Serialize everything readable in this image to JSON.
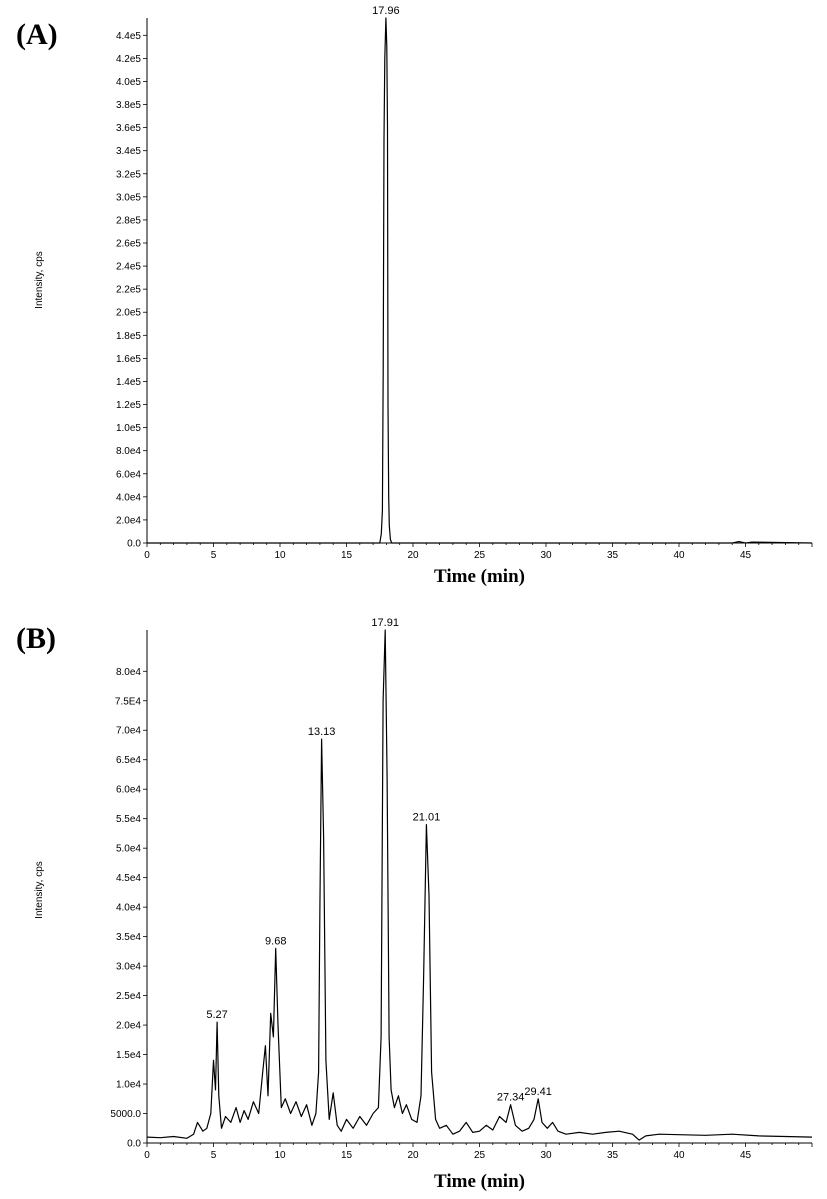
{
  "chart_data": [
    {
      "type": "line",
      "panel_label": "(A)",
      "xlabel": "Time (min)",
      "ylabel": "Intensity, cps",
      "xlim": [
        0,
        50
      ],
      "ylim": [
        0,
        455000
      ],
      "x_ticks": [
        0,
        5,
        10,
        15,
        20,
        25,
        30,
        35,
        40,
        45
      ],
      "x_tick_labels": [
        "0",
        "5",
        "10",
        "15",
        "20",
        "25",
        "30",
        "35",
        "40",
        "45"
      ],
      "y_ticks": [
        0,
        20000,
        40000,
        60000,
        80000,
        100000,
        120000,
        140000,
        160000,
        180000,
        200000,
        220000,
        240000,
        260000,
        280000,
        300000,
        320000,
        340000,
        360000,
        380000,
        400000,
        420000,
        440000
      ],
      "y_tick_labels": [
        "0.0",
        "2.0e4",
        "4.0e4",
        "6.0e4",
        "8.0e4",
        "1.0e5",
        "1.2e5",
        "1.4e5",
        "1.6e5",
        "1.8e5",
        "2.0e5",
        "2.2e5",
        "2.4e5",
        "2.6e5",
        "2.8e5",
        "3.0e5",
        "3.2e5",
        "3.4e5",
        "3.6e5",
        "3.8e5",
        "4.0e5",
        "4.2e5",
        "4.4e5"
      ],
      "peak_labels": [
        {
          "text": "17.96",
          "x": 17.96,
          "y": 455000
        }
      ],
      "series": [
        {
          "x": [
            0,
            17.5,
            17.62,
            17.7,
            17.76,
            17.82,
            17.88,
            17.96,
            18.03,
            18.08,
            18.12,
            18.17,
            18.22,
            18.3,
            18.4,
            44.0,
            44.5,
            45.0,
            45.5,
            50
          ],
          "y": [
            0,
            0,
            8000,
            28000,
            150000,
            350000,
            420000,
            455000,
            430000,
            360000,
            120000,
            40000,
            15000,
            3000,
            0,
            0,
            1200,
            0,
            800,
            0
          ]
        }
      ]
    },
    {
      "type": "line",
      "panel_label": "(B)",
      "xlabel": "Time (min)",
      "ylabel": "Intensity, cps",
      "xlim": [
        0,
        50
      ],
      "ylim": [
        0,
        87000
      ],
      "x_ticks": [
        0,
        5,
        10,
        15,
        20,
        25,
        30,
        35,
        40,
        45
      ],
      "x_tick_labels": [
        "0",
        "5",
        "10",
        "15",
        "20",
        "25",
        "30",
        "35",
        "40",
        "45"
      ],
      "y_ticks": [
        0,
        5000,
        10000,
        15000,
        20000,
        25000,
        30000,
        35000,
        40000,
        45000,
        50000,
        55000,
        60000,
        65000,
        70000,
        75000,
        80000
      ],
      "y_tick_labels": [
        "0.0",
        "5000.0",
        "1.0e4",
        "1.5e4",
        "2.0e4",
        "2.5e4",
        "3.0e4",
        "3.5e4",
        "4.0e4",
        "4.5e4",
        "5.0e4",
        "5.5e4",
        "6.0e4",
        "6.5e4",
        "7.0e4",
        "7.5E4",
        "8.0e4"
      ],
      "peak_labels": [
        {
          "text": "5.27",
          "x": 5.27,
          "y": 20500
        },
        {
          "text": "9.68",
          "x": 9.68,
          "y": 33000
        },
        {
          "text": "13.13",
          "x": 13.13,
          "y": 68500
        },
        {
          "text": "17.91",
          "x": 17.91,
          "y": 87000
        },
        {
          "text": "21.01",
          "x": 21.01,
          "y": 54000
        },
        {
          "text": "27.34",
          "x": 27.34,
          "y": 6500
        },
        {
          "text": "29.41",
          "x": 29.41,
          "y": 7500
        }
      ],
      "series": [
        {
          "x": [
            0,
            1,
            2,
            3,
            3.5,
            3.8,
            4.2,
            4.5,
            4.8,
            5.0,
            5.15,
            5.27,
            5.4,
            5.6,
            5.9,
            6.3,
            6.7,
            7.0,
            7.3,
            7.6,
            8.0,
            8.4,
            8.7,
            8.9,
            9.1,
            9.3,
            9.5,
            9.68,
            9.85,
            10.1,
            10.4,
            10.8,
            11.2,
            11.6,
            12.0,
            12.4,
            12.7,
            12.9,
            13.0,
            13.13,
            13.28,
            13.45,
            13.7,
            14.0,
            14.3,
            14.6,
            15.0,
            15.5,
            16.0,
            16.5,
            17.0,
            17.4,
            17.6,
            17.75,
            17.91,
            18.05,
            18.2,
            18.35,
            18.6,
            18.9,
            19.2,
            19.5,
            19.9,
            20.3,
            20.6,
            20.8,
            21.01,
            21.2,
            21.4,
            21.7,
            22.0,
            22.5,
            23.0,
            23.5,
            24.0,
            24.5,
            25.0,
            25.5,
            26.0,
            26.5,
            27.0,
            27.34,
            27.7,
            28.2,
            28.7,
            29.1,
            29.41,
            29.7,
            30.1,
            30.5,
            30.9,
            31.5,
            32.5,
            33.5,
            34.5,
            35.5,
            36.5,
            37.0,
            37.5,
            38.5,
            40,
            42,
            44,
            46,
            48,
            50
          ],
          "y": [
            1000,
            900,
            1100,
            800,
            1500,
            3500,
            2000,
            2500,
            5000,
            14000,
            9000,
            20500,
            8000,
            2500,
            4500,
            3500,
            6000,
            3500,
            5500,
            4000,
            7000,
            5000,
            12000,
            16500,
            8000,
            22000,
            18000,
            33000,
            20000,
            6000,
            7500,
            5000,
            7000,
            4500,
            6500,
            3000,
            5000,
            12000,
            40000,
            68500,
            52000,
            14000,
            4000,
            8500,
            3000,
            2000,
            4000,
            2500,
            4500,
            3000,
            5000,
            6000,
            18000,
            75000,
            87000,
            62000,
            18000,
            9000,
            6000,
            8000,
            5000,
            6500,
            4000,
            3500,
            8000,
            28000,
            54000,
            42000,
            12000,
            4000,
            2500,
            3000,
            1500,
            2000,
            3500,
            1800,
            2000,
            3000,
            2200,
            4500,
            3500,
            6500,
            3000,
            2000,
            2500,
            4000,
            7500,
            3500,
            2500,
            3500,
            2000,
            1500,
            1800,
            1500,
            1800,
            2000,
            1500,
            500,
            1200,
            1500,
            1400,
            1300,
            1500,
            1200,
            1100,
            1000
          ]
        }
      ]
    }
  ]
}
